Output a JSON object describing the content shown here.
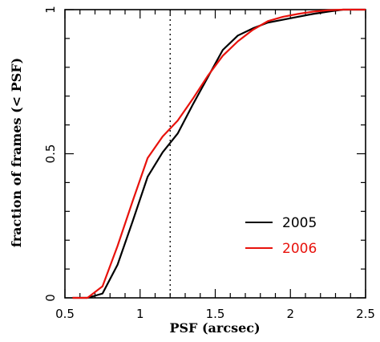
{
  "chart_data": {
    "type": "line",
    "title": "",
    "xlabel": "PSF (arcsec)",
    "ylabel": "fraction of frames (< PSF)",
    "xlim": [
      0.5,
      2.5
    ],
    "ylim": [
      0,
      1
    ],
    "x_ticks": [
      0.5,
      1,
      1.5,
      2,
      2.5
    ],
    "x_tick_labels": [
      "0.5",
      "1",
      "1.5",
      "2",
      "2.5"
    ],
    "y_ticks": [
      0,
      0.5,
      1
    ],
    "y_tick_labels": [
      "0",
      "0.5",
      "1"
    ],
    "grid": false,
    "legend_position": "lower-right",
    "reference_line": {
      "x": 1.2,
      "style": "dotted"
    },
    "series": [
      {
        "name": "2005",
        "color": "#000000",
        "points": [
          [
            0.55,
            0
          ],
          [
            0.65,
            0
          ],
          [
            0.75,
            0.015
          ],
          [
            0.85,
            0.115
          ],
          [
            0.95,
            0.265
          ],
          [
            1.05,
            0.42
          ],
          [
            1.15,
            0.505
          ],
          [
            1.25,
            0.57
          ],
          [
            1.35,
            0.67
          ],
          [
            1.45,
            0.765
          ],
          [
            1.55,
            0.86
          ],
          [
            1.65,
            0.91
          ],
          [
            1.75,
            0.935
          ],
          [
            1.85,
            0.955
          ],
          [
            1.95,
            0.965
          ],
          [
            2.05,
            0.975
          ],
          [
            2.15,
            0.985
          ],
          [
            2.25,
            0.993
          ],
          [
            2.35,
            1
          ],
          [
            2.5,
            1
          ]
        ]
      },
      {
        "name": "2006",
        "color": "#e8120c",
        "points": [
          [
            0.55,
            0
          ],
          [
            0.65,
            0
          ],
          [
            0.75,
            0.04
          ],
          [
            0.85,
            0.18
          ],
          [
            0.95,
            0.335
          ],
          [
            1.05,
            0.485
          ],
          [
            1.15,
            0.56
          ],
          [
            1.25,
            0.615
          ],
          [
            1.35,
            0.69
          ],
          [
            1.45,
            0.77
          ],
          [
            1.55,
            0.84
          ],
          [
            1.65,
            0.89
          ],
          [
            1.75,
            0.93
          ],
          [
            1.85,
            0.96
          ],
          [
            1.95,
            0.975
          ],
          [
            2.05,
            0.985
          ],
          [
            2.15,
            0.993
          ],
          [
            2.25,
            0.998
          ],
          [
            2.35,
            1
          ],
          [
            2.5,
            1
          ]
        ]
      }
    ]
  }
}
